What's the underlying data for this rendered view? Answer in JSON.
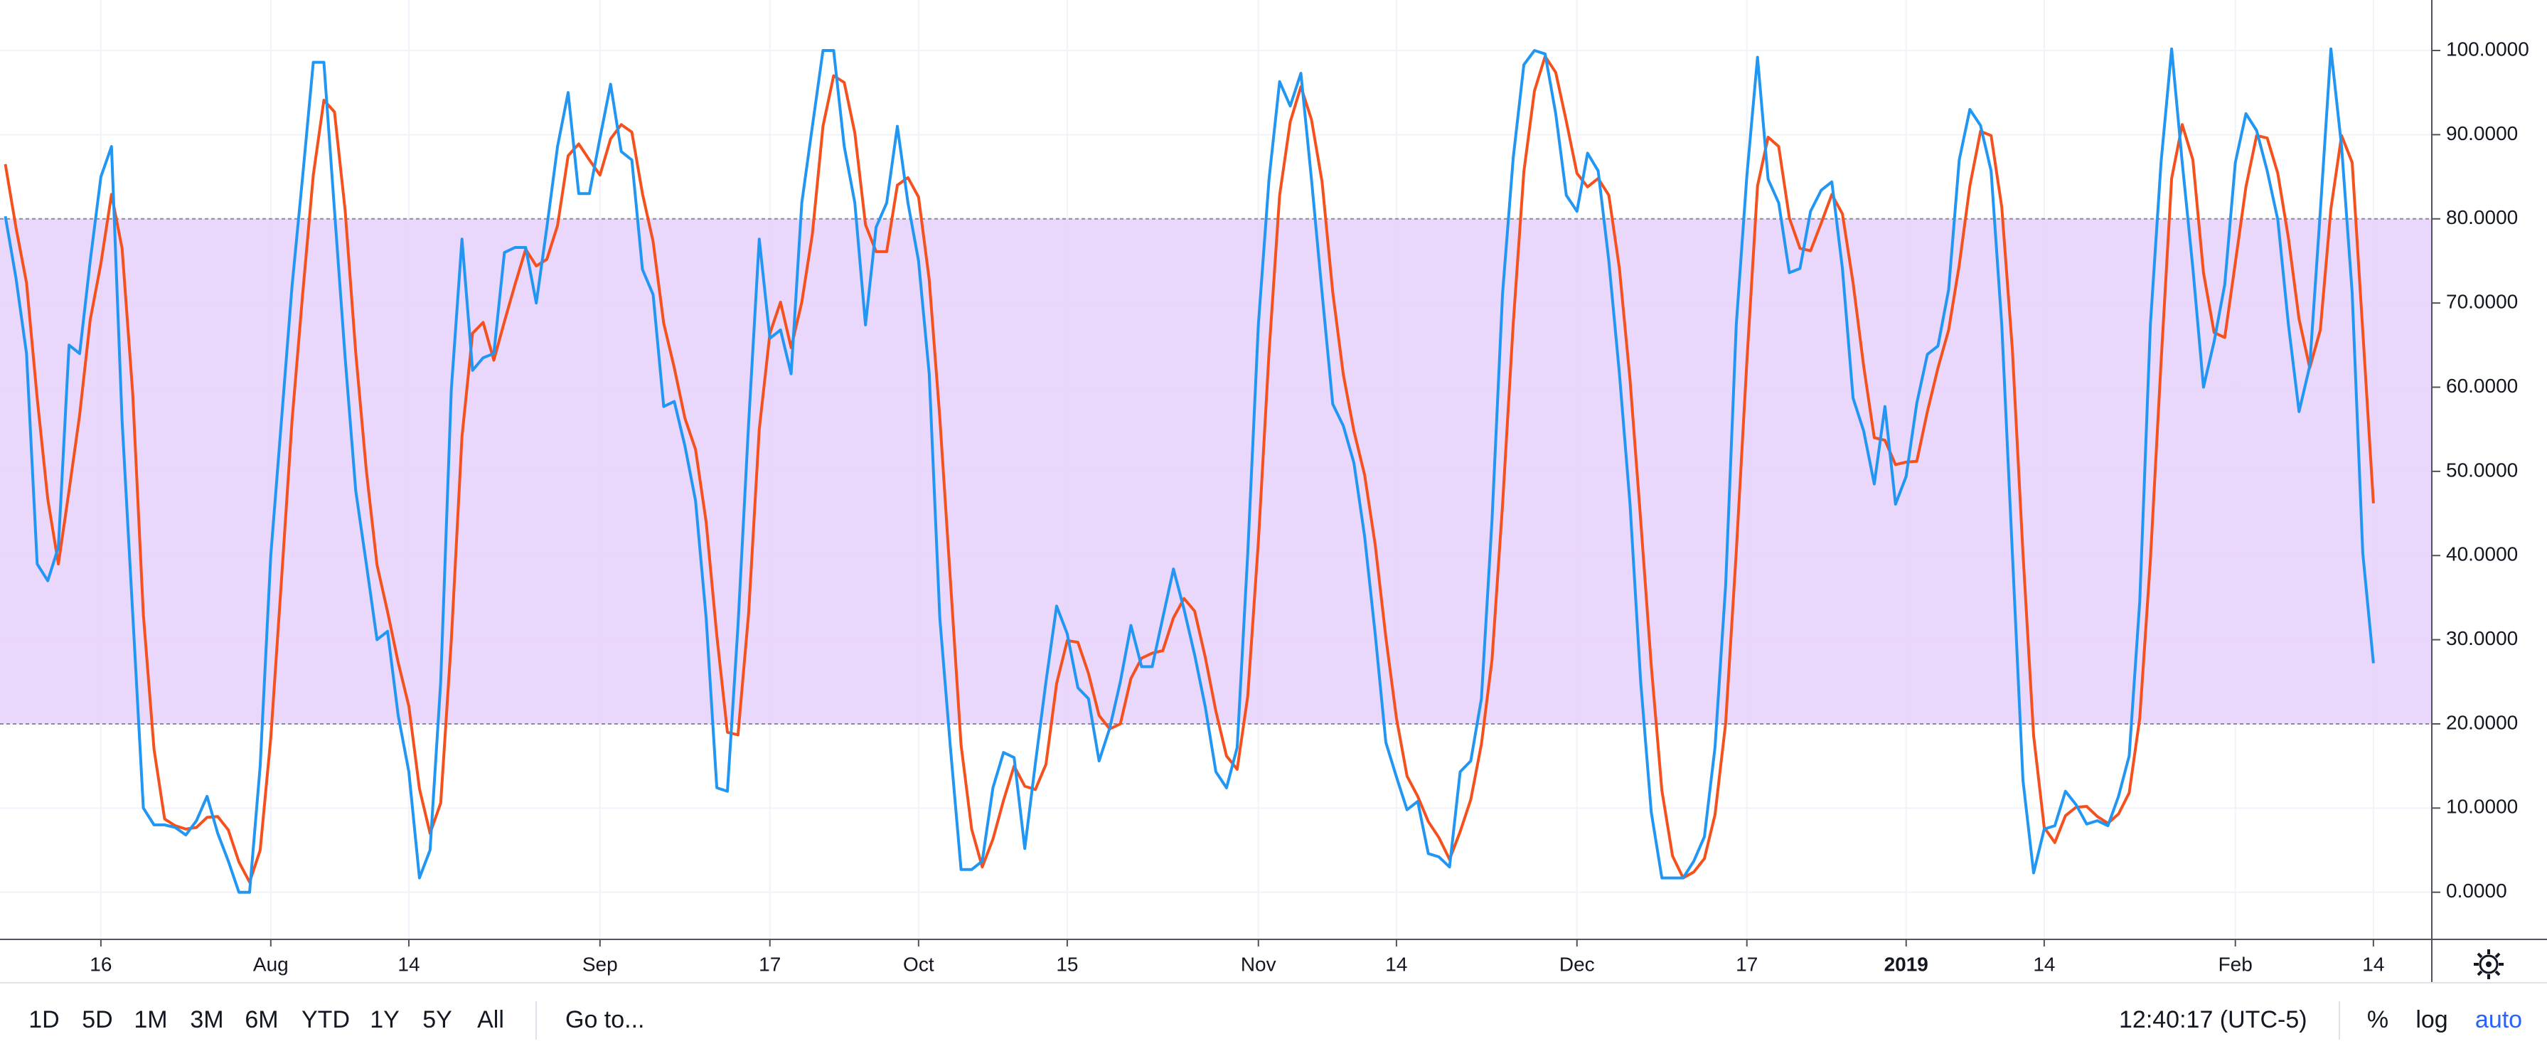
{
  "chart_data": {
    "type": "line",
    "xlim": [
      -0.5,
      228.5
    ],
    "ylim": [
      -5.6,
      106
    ],
    "xticks": [
      {
        "value": 9,
        "label": "16"
      },
      {
        "value": 25,
        "label": "Aug"
      },
      {
        "value": 38,
        "label": "14"
      },
      {
        "value": 56,
        "label": "Sep"
      },
      {
        "value": 72,
        "label": "17"
      },
      {
        "value": 86,
        "label": "Oct"
      },
      {
        "value": 100,
        "label": "15"
      },
      {
        "value": 118,
        "label": "Nov"
      },
      {
        "value": 131,
        "label": "14"
      },
      {
        "value": 148,
        "label": "Dec"
      },
      {
        "value": 164,
        "label": "17"
      },
      {
        "value": 179,
        "label": "2019",
        "bold": true
      },
      {
        "value": 192,
        "label": "14"
      },
      {
        "value": 210,
        "label": "Feb"
      },
      {
        "value": 223,
        "label": "14"
      }
    ],
    "yticks": [
      {
        "value": 0,
        "label": "0.0000"
      },
      {
        "value": 10,
        "label": "10.0000"
      },
      {
        "value": 20,
        "label": "20.0000"
      },
      {
        "value": 30,
        "label": "30.0000"
      },
      {
        "value": 40,
        "label": "40.0000"
      },
      {
        "value": 50,
        "label": "50.0000"
      },
      {
        "value": 60,
        "label": "60.0000"
      },
      {
        "value": 70,
        "label": "70.0000"
      },
      {
        "value": 80,
        "label": "80.0000"
      },
      {
        "value": 90,
        "label": "90.0000"
      },
      {
        "value": 100,
        "label": "100.0000"
      }
    ],
    "grid": true,
    "band": {
      "lower": 20,
      "upper": 80,
      "color": "#e8d3fc"
    },
    "series": [
      {
        "color": "#2196f3",
        "values": [
          80.3,
          73,
          64,
          39,
          37,
          41,
          65,
          64,
          75,
          85,
          88.6,
          56,
          33,
          10,
          8,
          8,
          7.7,
          6.8,
          8.5,
          11.4,
          7,
          3.7,
          0,
          0,
          15,
          40,
          56,
          72,
          85,
          98.6,
          98.6,
          81,
          63.5,
          47.7,
          39,
          30,
          31,
          21,
          14.3,
          1.7,
          5,
          25,
          59.7,
          77.6,
          62,
          63.5,
          64,
          76,
          76.6,
          76.6,
          70,
          79,
          88.6,
          95,
          83,
          83,
          89.6,
          96,
          88,
          87,
          74,
          71,
          57.7,
          58.3,
          53,
          46.5,
          32.6,
          12.4,
          12,
          31.7,
          55.8,
          77.6,
          65.8,
          66.8,
          61.6,
          81.9,
          91,
          100,
          100,
          88.6,
          81.9,
          67.4,
          79,
          81.9,
          91,
          81.9,
          75,
          61.6,
          32.6,
          17.2,
          2.7,
          2.7,
          3.7,
          12.4,
          16.6,
          16,
          5.2,
          15.3,
          25,
          34,
          30.7,
          24.3,
          23,
          15.6,
          19.5,
          25,
          31.7,
          26.8,
          26.8,
          32.6,
          38.4,
          33.6,
          28.2,
          22,
          14.3,
          12.4,
          17.2,
          40.3,
          67.4,
          84.7,
          96.3,
          93.4,
          97.3,
          84.7,
          71.2,
          58,
          55.4,
          51,
          42.3,
          30.7,
          17.8,
          13.7,
          9.8,
          10.8,
          4.6,
          4.2,
          3,
          14.3,
          15.6,
          23,
          44.2,
          71.2,
          87.3,
          98.3,
          100,
          99.6,
          92.5,
          82.8,
          80.9,
          87.8,
          85.7,
          75,
          61.6,
          46.1,
          25,
          9.5,
          1.7,
          1.7,
          1.7,
          3.7,
          6.6,
          17.2,
          36.5,
          67.4,
          85.1,
          99.2,
          84.7,
          81.9,
          73.6,
          74.1,
          80.9,
          83.4,
          84.4,
          74.1,
          58.7,
          54.8,
          48.5,
          57.7,
          46.1,
          49.4,
          58.1,
          63.9,
          64.9,
          71.6,
          87,
          93,
          91.1,
          85.7,
          67.4,
          40.3,
          13.3,
          2.3,
          7.5,
          7.9,
          12,
          10.4,
          8.1,
          8.5,
          7.9,
          11.4,
          16.2,
          34.6,
          67.4,
          86.7,
          100.2,
          86.7,
          74.1,
          60,
          65.4,
          72.2,
          86.7,
          92.5,
          90.5,
          85.7,
          79.9,
          67.4,
          57.1,
          62.5,
          80.9,
          100.2,
          88.6,
          71.2,
          40.3,
          27.2
        ]
      },
      {
        "color": "#f4511e",
        "values": [
          86.5,
          79,
          72.4,
          58.7,
          46.7,
          39,
          47.7,
          56.7,
          68,
          74.7,
          82.9,
          76.5,
          59.2,
          33,
          17,
          8.7,
          7.9,
          7.5,
          7.7,
          8.9,
          9,
          7.4,
          3.6,
          1.2,
          5,
          18.3,
          37,
          56,
          71,
          85.2,
          94.1,
          92.7,
          81,
          64.1,
          50.1,
          38.9,
          33.3,
          27.3,
          22.1,
          12.3,
          7,
          10.6,
          29.9,
          54.1,
          66.4,
          67.7,
          63.2,
          67.8,
          72.2,
          76.4,
          74.4,
          75.2,
          79.2,
          87.5,
          88.9,
          87,
          85.2,
          89.5,
          91.2,
          90.3,
          83,
          77.3,
          67.6,
          62.3,
          56.3,
          52.6,
          44,
          30.5,
          19,
          18.7,
          33.2,
          55,
          66.4,
          70.1,
          64.7,
          70.1,
          78.2,
          91,
          97,
          96.2,
          90.2,
          79.3,
          76.1,
          76.1,
          84,
          84.9,
          82.6,
          72.8,
          56.4,
          37.1,
          17.5,
          7.5,
          3,
          6.3,
          10.9,
          15,
          12.6,
          12.2,
          15.2,
          24.8,
          29.9,
          29.7,
          26,
          21,
          19.4,
          20,
          25.4,
          27.8,
          28.4,
          28.7,
          32.6,
          34.9,
          33.4,
          27.9,
          21.5,
          16.2,
          14.6,
          23.3,
          41.6,
          64.1,
          82.8,
          91.5,
          95.7,
          91.8,
          84.4,
          71.3,
          61.5,
          54.8,
          49.6,
          41.3,
          30.3,
          20.7,
          13.8,
          11.4,
          8.4,
          6.5,
          3.9,
          7.2,
          11,
          17.6,
          27.6,
          46.1,
          67.6,
          85.6,
          95.2,
          99.3,
          97.4,
          91.6,
          85.4,
          83.8,
          84.8,
          82.8,
          74.1,
          60.9,
          44.2,
          26.9,
          12.1,
          4.3,
          1.7,
          2.4,
          4,
          9.2,
          20.1,
          40.4,
          63,
          83.9,
          89.7,
          88.6,
          80.1,
          76.5,
          76.2,
          79.5,
          82.9,
          80.6,
          72.4,
          62.5,
          54,
          53.7,
          50.8,
          51.1,
          51.2,
          57.1,
          62.3,
          66.8,
          74.5,
          83.9,
          90.4,
          89.9,
          81.4,
          64.5,
          40.3,
          18.6,
          7.7,
          5.9,
          9.1,
          10.1,
          10.2,
          9,
          8.2,
          9.3,
          11.8,
          20.7,
          39.4,
          62.9,
          84.8,
          91.2,
          87,
          73.6,
          66.5,
          65.9,
          74.8,
          83.8,
          89.9,
          89.6,
          85.4,
          77.7,
          68.1,
          62.3,
          66.8,
          81.2,
          89.9,
          86.7,
          66.7,
          46.2
        ]
      }
    ]
  },
  "toolbar": {
    "ranges": [
      "1D",
      "5D",
      "1M",
      "3M",
      "6M",
      "YTD",
      "1Y",
      "5Y",
      "All"
    ],
    "goto": "Go to...",
    "time": "12:40:17 (UTC-5)",
    "percent": "%",
    "log": "log",
    "auto": "auto"
  }
}
